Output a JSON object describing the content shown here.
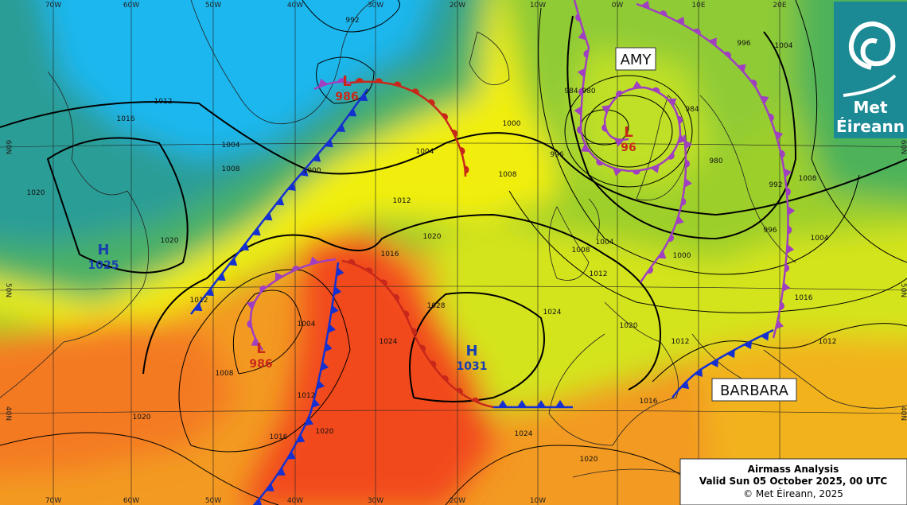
{
  "legend_box": {
    "title": "Airmass Analysis",
    "valid": "Valid Sun 05 October 2025, 00 UTC",
    "copyright": "© Met Éireann, 2025"
  },
  "logo": {
    "line1": "Met",
    "line2": "Éireann"
  },
  "storm_names": [
    "AMY",
    "BARBARA"
  ],
  "pressure_centres": [
    {
      "symbol": "H",
      "value": "1025"
    },
    {
      "symbol": "H",
      "value": "1031"
    },
    {
      "symbol": "L",
      "value": "986"
    },
    {
      "symbol": "L",
      "value": "986"
    },
    {
      "symbol": "L",
      "value": "96"
    }
  ],
  "longitude_labels_top": [
    "70W",
    "60W",
    "50W",
    "40W",
    "30W",
    "20W",
    "10W",
    "0W",
    "10E",
    "20E"
  ],
  "longitude_labels_bottom": [
    "70W",
    "60W",
    "50W",
    "40W",
    "30W",
    "20W",
    "10W"
  ],
  "latitude_labels_left": [
    "60N",
    "50N",
    "40N"
  ],
  "latitude_labels_right": [
    "60N",
    "50N",
    "40N"
  ],
  "isobar_labels": [
    "992",
    "1012",
    "1016",
    "1004",
    "1008",
    "1000",
    "1004",
    "1008",
    "1012",
    "1020",
    "1016",
    "1000",
    "996",
    "984",
    "980",
    "984",
    "980",
    "996",
    "1004",
    "992",
    "996",
    "1000",
    "1004",
    "1008",
    "1012",
    "1016",
    "1020",
    "1024",
    "1028",
    "1024",
    "1004",
    "1008",
    "1012",
    "1020",
    "1020",
    "1020",
    "1016",
    "1012",
    "1020",
    "1024",
    "1020",
    "1012",
    "1016",
    "1004",
    "1008",
    "1012"
  ]
}
